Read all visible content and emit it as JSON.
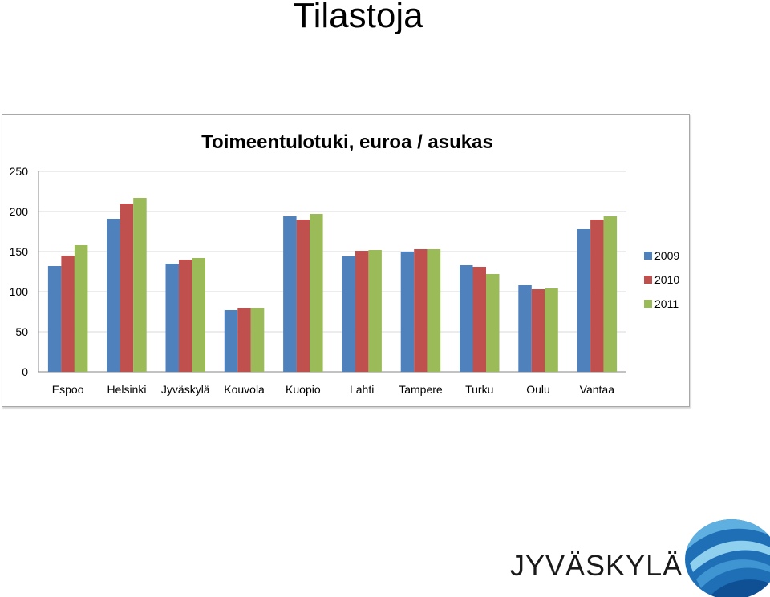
{
  "slide": {
    "title": "Tilastoja"
  },
  "colors": {
    "s2009": "#4f81bd",
    "s2010": "#c0504d",
    "s2011": "#9bbb59",
    "grid": "#d9d9d9",
    "axis": "#868686"
  },
  "chart_data": {
    "type": "bar",
    "title": "Toimeentulotuki, euroa / asukas",
    "xlabel": "",
    "ylabel": "",
    "ylim": [
      0,
      250
    ],
    "yticks": [
      0,
      50,
      100,
      150,
      200,
      250
    ],
    "grid": true,
    "legend_position": "right",
    "categories": [
      "Espoo",
      "Helsinki",
      "Jyväskylä",
      "Kouvola",
      "Kuopio",
      "Lahti",
      "Tampere",
      "Turku",
      "Oulu",
      "Vantaa"
    ],
    "series": [
      {
        "name": "2009",
        "color": "#4f81bd",
        "values": [
          132,
          191,
          135,
          77,
          194,
          144,
          150,
          133,
          108,
          178
        ]
      },
      {
        "name": "2010",
        "color": "#c0504d",
        "values": [
          145,
          210,
          140,
          80,
          190,
          151,
          153,
          131,
          103,
          190
        ]
      },
      {
        "name": "2011",
        "color": "#9bbb59",
        "values": [
          158,
          217,
          142,
          80,
          197,
          152,
          153,
          122,
          104,
          194
        ]
      }
    ]
  },
  "logo": {
    "text": "JYVÄSKYLÄ",
    "icon": "jyvaskyla-wave-logo-icon"
  }
}
